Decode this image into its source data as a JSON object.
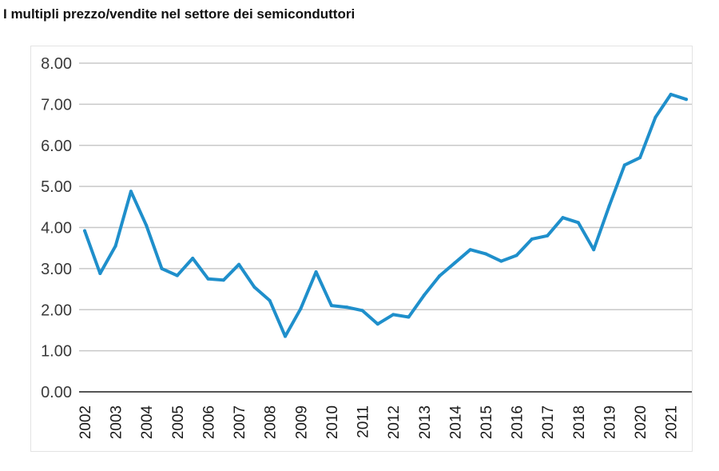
{
  "title": "I multipli prezzo/vendite nel settore dei semiconduttori",
  "colors": {
    "line": "#1f8fcb",
    "grid": "#c8c8c8",
    "axis": "#555555"
  },
  "chart_data": {
    "type": "line",
    "title": "I multipli prezzo/vendite nel settore dei semiconduttori",
    "xlabel": "",
    "ylabel": "",
    "ylim": [
      0,
      8
    ],
    "yticks": [
      "0.00",
      "1.00",
      "2.00",
      "3.00",
      "4.00",
      "5.00",
      "6.00",
      "7.00",
      "8.00"
    ],
    "xticks": [
      "2002",
      "2003",
      "2004",
      "2005",
      "2006",
      "2007",
      "2008",
      "2009",
      "2010",
      "2011",
      "2012",
      "2013",
      "2014",
      "2015",
      "2016",
      "2017",
      "2018",
      "2019",
      "2020",
      "2021"
    ],
    "grid": true,
    "legend": "none",
    "series": [
      {
        "x": [
          2002.0,
          2002.5,
          2003.0,
          2003.5,
          2004.0,
          2004.5,
          2005.0,
          2005.5,
          2006.0,
          2006.5,
          2007.0,
          2007.5,
          2008.0,
          2008.5,
          2009.0,
          2009.5,
          2010.0,
          2010.5,
          2011.0,
          2011.5,
          2012.0,
          2012.5,
          2013.0,
          2013.5,
          2014.0,
          2014.5,
          2015.0,
          2015.5,
          2016.0,
          2016.5,
          2017.0,
          2017.5,
          2018.0,
          2018.5,
          2019.0,
          2019.5,
          2020.0,
          2020.5,
          2021.0,
          2021.5
        ],
        "values": [
          3.92,
          2.88,
          3.55,
          4.88,
          4.05,
          3.0,
          2.83,
          3.25,
          2.75,
          2.72,
          3.1,
          2.55,
          2.22,
          1.35,
          2.02,
          2.92,
          2.1,
          2.06,
          1.98,
          1.65,
          1.88,
          1.82,
          2.35,
          2.82,
          3.14,
          3.46,
          3.36,
          3.18,
          3.32,
          3.72,
          3.8,
          4.24,
          4.12,
          3.46,
          4.52,
          5.52,
          5.7,
          6.68,
          7.24,
          7.12
        ]
      }
    ]
  }
}
